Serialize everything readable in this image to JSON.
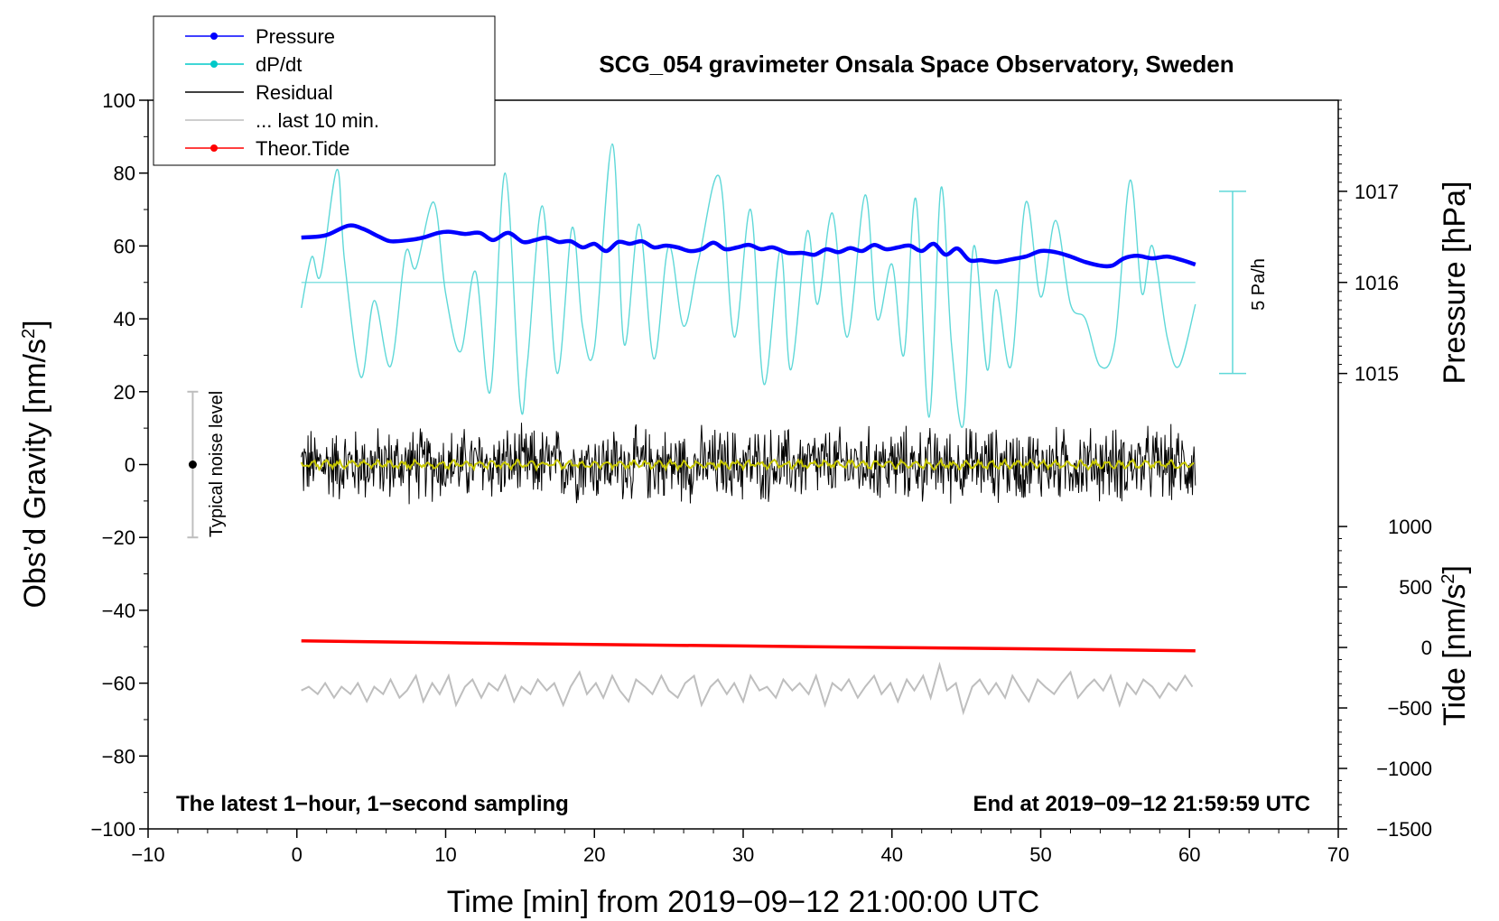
{
  "chart_data": {
    "type": "line",
    "title": "SCG_054 gravimeter Onsala Space Observatory, Sweden",
    "xlabel": "Time [min] from 2019−09−12 21:00:00 UTC",
    "ylabel_left_main": "Obs’d Gravity [nm/s",
    "ylabel_left_sup": "2",
    "ylabel_left_close": "]",
    "ylabel_right_pressure": "Pressure [hPa]",
    "ylabel_right_tide_main": "Tide [nm/s",
    "ylabel_right_tide_sup": "2",
    "ylabel_right_tide_close": "]",
    "xlim": [
      -10,
      70
    ],
    "ylim": [
      -100,
      100
    ],
    "x_ticks": [
      "−10",
      "0",
      "10",
      "20",
      "30",
      "40",
      "50",
      "60",
      "70"
    ],
    "x_tick_values": [
      -10,
      0,
      10,
      20,
      30,
      40,
      50,
      60,
      70
    ],
    "y_ticks": [
      "100",
      "80",
      "60",
      "40",
      "20",
      "0",
      "−20",
      "−40",
      "−60",
      "−80",
      "−100"
    ],
    "y_tick_values": [
      100,
      80,
      60,
      40,
      20,
      0,
      -20,
      -40,
      -60,
      -80,
      -100
    ],
    "pressure_axis": {
      "ticks": [
        "1017",
        "1016",
        "1015"
      ],
      "tick_values": [
        1017,
        1016,
        1015
      ],
      "gravity_equiv": [
        [
          1017,
          75
        ],
        [
          1015,
          25
        ]
      ]
    },
    "tide_axis": {
      "ticks": [
        "1000",
        "500",
        "0",
        "−500",
        "−1000",
        "−1500"
      ],
      "tick_values": [
        1000,
        500,
        0,
        -500,
        -1000,
        -1500
      ],
      "gravity_equiv": [
        [
          1000,
          -17
        ],
        [
          -1500,
          -100
        ]
      ]
    },
    "legend": [
      {
        "label": "Pressure",
        "color": "#0000ff",
        "marker": true
      },
      {
        "label": "dP/dt",
        "color": "#00c8c8",
        "marker": true
      },
      {
        "label": "Residual",
        "color": "#000000",
        "marker": false
      },
      {
        "label": "... last 10 min.",
        "color": "#bebebe",
        "marker": false
      },
      {
        "label": "Theor.Tide",
        "color": "#ff0000",
        "marker": true
      }
    ],
    "scale_bar_label": "5 Pa/h",
    "scale_bar_range": [
      25,
      75
    ],
    "noise_label": "Typical noise level",
    "noise_bar": {
      "x": -7,
      "center": 0,
      "range": [
        -20,
        20
      ]
    },
    "annotation_left": "The latest 1−hour, 1−second sampling",
    "annotation_right": "End at 2019−09−12 21:59:59 UTC",
    "series": [
      {
        "name": "Pressure",
        "color": "#0000ff",
        "x": [
          0.3,
          1.5,
          2.2,
          3.5,
          4.5,
          5.5,
          6.3,
          7.5,
          8.5,
          9.5,
          10.3,
          11.3,
          12.3,
          13.2,
          14.2,
          15.2,
          16.0,
          16.8,
          17.6,
          18.4,
          19.2,
          20.0,
          20.8,
          21.6,
          22.4,
          23.2,
          24.0,
          24.8,
          25.6,
          26.4,
          27.2,
          28.0,
          28.8,
          29.6,
          30.4,
          31.2,
          32.0,
          33.0,
          34.0,
          34.8,
          35.6,
          36.4,
          37.2,
          38.0,
          38.8,
          39.6,
          40.4,
          41.2,
          42.0,
          42.8,
          43.6,
          44.4,
          45.2,
          46.0,
          47.0,
          48.0,
          49.0,
          50.0,
          51.0,
          52.0,
          53.0,
          54.0,
          54.8,
          55.6,
          56.5,
          57.5,
          58.5,
          59.5,
          60.4
        ],
        "values": [
          62.3,
          62.6,
          63.3,
          65.6,
          64.6,
          62.6,
          61.3,
          61.6,
          62.3,
          63.6,
          63.9,
          63.3,
          63.6,
          61.6,
          63.6,
          61.1,
          61.6,
          62.3,
          61.1,
          61.3,
          59.6,
          60.6,
          58.6,
          61.1,
          60.6,
          61.3,
          59.6,
          60.1,
          59.6,
          58.6,
          59.1,
          60.9,
          59.1,
          59.6,
          60.3,
          59.1,
          59.6,
          58.1,
          58.1,
          57.6,
          59.1,
          58.3,
          59.4,
          58.6,
          60.3,
          59.1,
          59.6,
          60.1,
          58.6,
          60.6,
          57.6,
          59.3,
          56.1,
          56.1,
          55.6,
          56.3,
          57.1,
          58.6,
          58.3,
          57.1,
          55.6,
          54.6,
          54.6,
          56.6,
          57.3,
          56.6,
          57.1,
          56.1,
          54.9
        ]
      },
      {
        "name": "dP/dt",
        "color": "#00c8c8",
        "x": [
          0.3,
          1.0,
          1.6,
          2.7,
          3.2,
          4.3,
          5.2,
          6.3,
          7.3,
          8.0,
          9.2,
          10.0,
          11.0,
          12.0,
          13.0,
          14.0,
          15.0,
          15.5,
          16.5,
          17.5,
          18.5,
          19.2,
          20.0,
          21.2,
          22.0,
          23.0,
          24.0,
          25.0,
          26.0,
          27.0,
          28.4,
          29.4,
          30.5,
          31.4,
          32.5,
          33.2,
          34.3,
          35.0,
          36.0,
          37.0,
          38.2,
          39.0,
          40.0,
          40.8,
          41.6,
          42.5,
          43.3,
          44.0,
          44.8,
          45.5,
          46.4,
          47.0,
          48.0,
          49.0,
          50.0,
          51.0,
          52.0,
          53.0,
          54.0,
          55.0,
          56.0,
          56.8,
          57.5,
          58.5,
          59.3,
          60.4
        ],
        "values": [
          43,
          57,
          52,
          81,
          56,
          24,
          45,
          27,
          58,
          54,
          72,
          47,
          31,
          53,
          20,
          80,
          17,
          28,
          71,
          25,
          65,
          38,
          32,
          88,
          33,
          66,
          29,
          60,
          38,
          56,
          79,
          35,
          70,
          22,
          59,
          26,
          64,
          44,
          69,
          35,
          74,
          40,
          55,
          30,
          73,
          13,
          76,
          33,
          11,
          60,
          26,
          48,
          27,
          72,
          46,
          67,
          44,
          40,
          27,
          34,
          78,
          47,
          60,
          35,
          27,
          44
        ]
      },
      {
        "name": "dP/dt baseline",
        "color": "#00c8c8",
        "x": [
          0.3,
          60.4
        ],
        "values": [
          50,
          50
        ]
      },
      {
        "name": "Residual",
        "color": "#000000",
        "x": [
          0.3,
          60.4
        ],
        "values": [
          0,
          0
        ],
        "amplitude_range": [
          -12,
          12
        ]
      },
      {
        "name": "Residual smoothed",
        "color": "#c8c800",
        "x": [
          0.3,
          60.4
        ],
        "values": [
          0,
          0
        ]
      },
      {
        "name": "... last 10 min.",
        "color": "#bebebe",
        "x": [
          0.3,
          0.8,
          1.4,
          1.9,
          2.5,
          3.0,
          3.6,
          4.1,
          4.7,
          5.2,
          5.8,
          6.3,
          6.9,
          7.4,
          8.0,
          8.5,
          9.1,
          9.6,
          10.2,
          10.7,
          11.3,
          11.8,
          12.4,
          12.9,
          13.5,
          14.0,
          14.6,
          15.1,
          15.7,
          16.2,
          16.8,
          17.3,
          17.9,
          18.4,
          19.0,
          19.5,
          20.1,
          20.6,
          21.2,
          21.7,
          22.3,
          22.8,
          23.4,
          23.9,
          24.5,
          25.0,
          25.6,
          26.1,
          26.7,
          27.2,
          27.8,
          28.3,
          28.9,
          29.4,
          30.0,
          30.5,
          31.1,
          31.6,
          32.2,
          32.7,
          33.3,
          33.8,
          34.4,
          34.9,
          35.5,
          36.0,
          36.6,
          37.1,
          37.7,
          38.2,
          38.8,
          39.3,
          39.9,
          40.4,
          41.0,
          41.5,
          42.1,
          42.6,
          43.2,
          43.7,
          44.3,
          44.8,
          45.4,
          45.9,
          46.5,
          47.0,
          47.6,
          48.1,
          48.7,
          49.2,
          49.8,
          50.3,
          50.9,
          51.4,
          52.0,
          52.5,
          53.1,
          53.6,
          54.2,
          54.7,
          55.3,
          55.8,
          56.4,
          56.9,
          57.5,
          58.0,
          58.6,
          59.1,
          59.7,
          60.2
        ],
        "values": [
          -62,
          -61,
          -63,
          -60,
          -64,
          -61,
          -63,
          -60,
          -65,
          -61,
          -63,
          -59,
          -64,
          -62,
          -58,
          -65,
          -60,
          -63,
          -58,
          -66,
          -61,
          -59,
          -64,
          -60,
          -62,
          -58,
          -65,
          -61,
          -63,
          -59,
          -62,
          -60,
          -66,
          -61,
          -57,
          -63,
          -60,
          -64,
          -58,
          -62,
          -65,
          -59,
          -61,
          -63,
          -58,
          -62,
          -64,
          -60,
          -58,
          -66,
          -61,
          -59,
          -63,
          -60,
          -65,
          -58,
          -62,
          -61,
          -64,
          -59,
          -62,
          -60,
          -63,
          -58,
          -66,
          -60,
          -62,
          -59,
          -64,
          -61,
          -58,
          -63,
          -60,
          -65,
          -59,
          -62,
          -58,
          -64,
          -55,
          -62,
          -60,
          -68,
          -61,
          -59,
          -63,
          -60,
          -64,
          -58,
          -62,
          -65,
          -59,
          -61,
          -63,
          -60,
          -57,
          -64,
          -61,
          -59,
          -62,
          -58,
          -66,
          -60,
          -63,
          -59,
          -61,
          -64,
          -60,
          -62,
          -58,
          -61
        ]
      },
      {
        "name": "Theor.Tide",
        "color": "#ff0000",
        "x": [
          0.3,
          10,
          20,
          30,
          40,
          50,
          60.4
        ],
        "values": [
          -48.4,
          -48.9,
          -49.4,
          -49.8,
          -50.2,
          -50.6,
          -51.1
        ]
      }
    ]
  }
}
